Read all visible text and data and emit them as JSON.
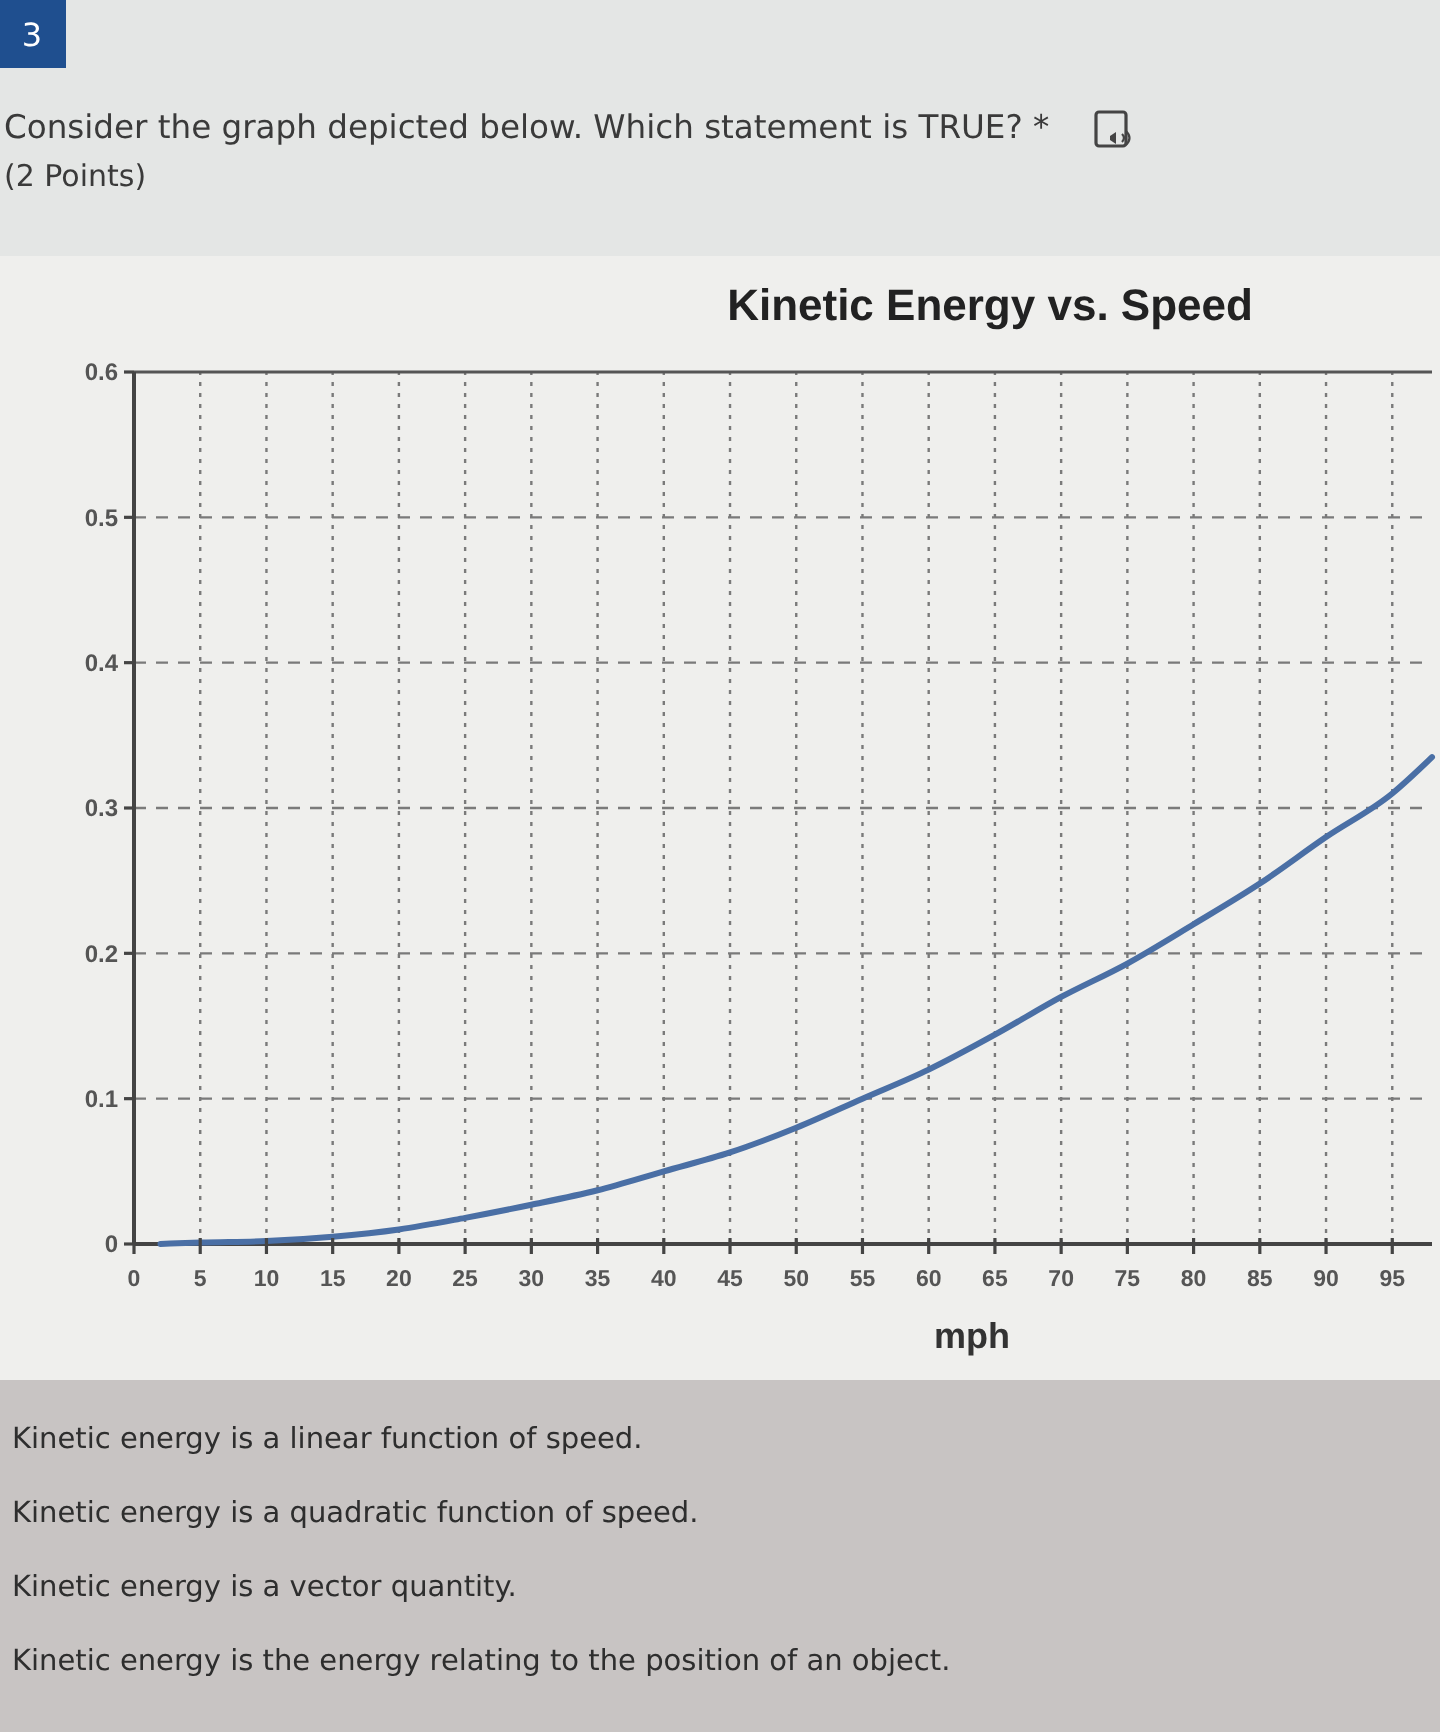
{
  "chart_data": {
    "type": "line",
    "title": "Kinetic Energy vs. Speed",
    "xlabel": "mph",
    "annotations": [
      "3",
      "Consider the graph depicted below. Which statement is TRUE? *",
      "(2 Points)",
      "Kinetic energy is a linear function of speed.",
      "Kinetic energy is a quadratic function of speed.",
      "Kinetic energy is a vector quantity.",
      "Kinetic energy is the energy relating to the position of an object."
    ],
    "x": [
      2,
      5,
      10,
      15,
      20,
      25,
      30,
      35,
      40,
      45,
      50,
      55,
      60,
      65,
      70,
      75,
      80,
      85,
      90,
      95,
      98
    ],
    "values": [
      0,
      0.001,
      0.002,
      0.005,
      0.01,
      0.018,
      0.027,
      0.037,
      0.05,
      0.063,
      0.08,
      0.1,
      0.12,
      0.144,
      0.17,
      0.193,
      0.22,
      0.248,
      0.28,
      0.31,
      0.335
    ],
    "color": "#4a6fa5",
    "xlim": [
      0,
      98
    ],
    "xticks": [
      0,
      5,
      10,
      15,
      20,
      25,
      30,
      35,
      40,
      45,
      50,
      55,
      60,
      65,
      70,
      75,
      80,
      85,
      90,
      95
    ],
    "ylim": [
      0,
      0.6
    ],
    "yticks": [
      0,
      0.1,
      0.2,
      0.3,
      0.4,
      0.5,
      0.6
    ],
    "grid": true,
    "marker": "none",
    "line_style": "solid"
  }
}
